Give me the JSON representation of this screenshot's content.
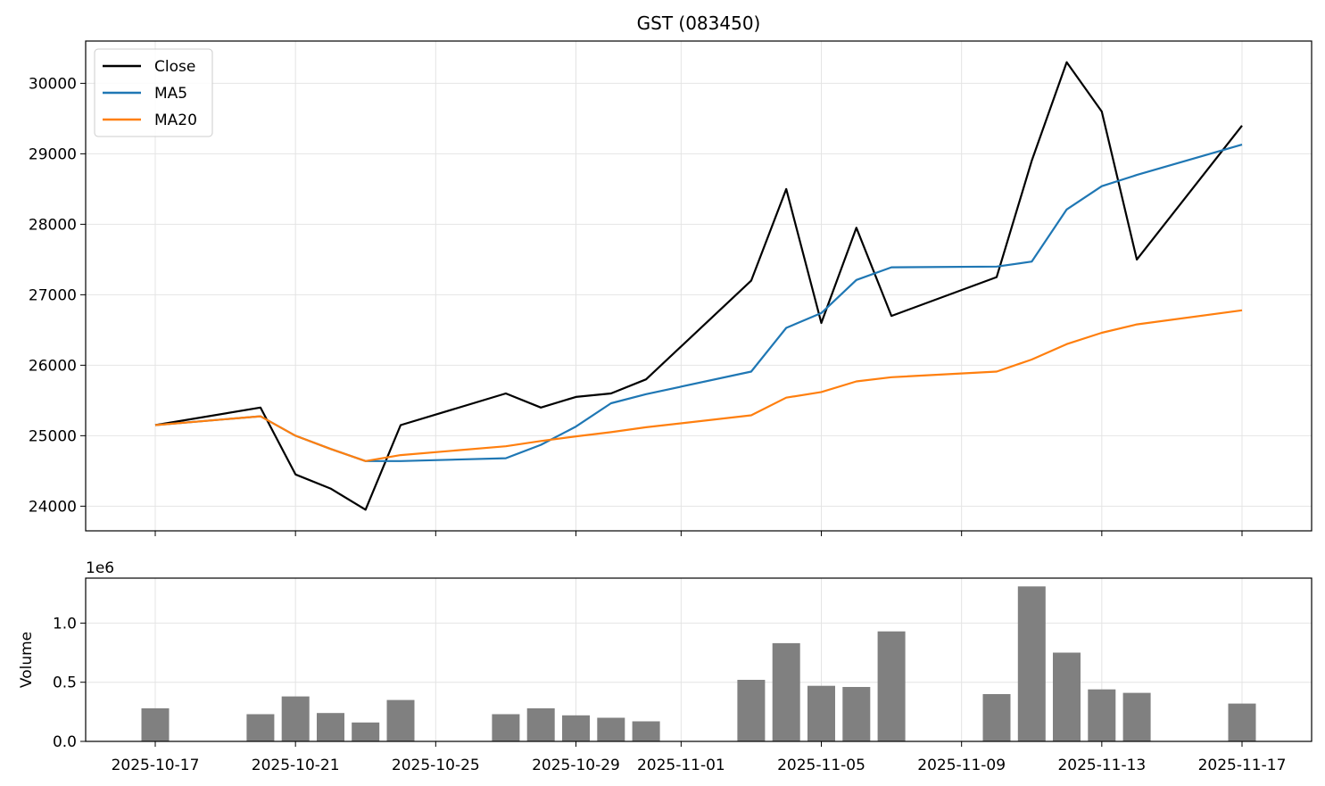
{
  "title": "GST (083450)",
  "chart_data": [
    {
      "type": "line",
      "title": "GST (083450)",
      "xlabel": "",
      "ylabel": "",
      "ylim": [
        23650,
        30600
      ],
      "yticks": [
        24000,
        25000,
        26000,
        27000,
        28000,
        29000,
        30000
      ],
      "grid": true,
      "legend_position": "top-left",
      "dates": [
        "2025-10-17",
        "2025-10-20",
        "2025-10-21",
        "2025-10-22",
        "2025-10-23",
        "2025-10-24",
        "2025-10-27",
        "2025-10-28",
        "2025-10-29",
        "2025-10-30",
        "2025-10-31",
        "2025-11-03",
        "2025-11-04",
        "2025-11-05",
        "2025-11-06",
        "2025-11-07",
        "2025-11-10",
        "2025-11-11",
        "2025-11-12",
        "2025-11-13",
        "2025-11-14",
        "2025-11-17"
      ],
      "series": [
        {
          "name": "Close",
          "color": "#000000",
          "values": [
            25150,
            25400,
            24450,
            24250,
            23950,
            25150,
            25600,
            25400,
            25550,
            25600,
            25800,
            27200,
            28500,
            26600,
            27950,
            26700,
            27250,
            28900,
            30300,
            29600,
            27500,
            29400
          ]
        },
        {
          "name": "MA5",
          "color": "#1f77b4",
          "values": [
            25150,
            25275,
            25000,
            24812,
            24640,
            24640,
            24680,
            24870,
            25130,
            25460,
            25590,
            25910,
            26530,
            26740,
            27210,
            27390,
            27400,
            27470,
            28210,
            28540,
            28700,
            29130
          ]
        },
        {
          "name": "MA20",
          "color": "#ff7f0e",
          "values": [
            25150,
            25275,
            25000,
            24812,
            24640,
            24725,
            24850,
            24925,
            24990,
            25050,
            25120,
            25290,
            25540,
            25620,
            25770,
            25830,
            25910,
            26080,
            26300,
            26460,
            26580,
            26780
          ]
        }
      ]
    },
    {
      "type": "bar",
      "ylabel": "Volume",
      "offset_label": "1e6",
      "ylim": [
        0,
        1.38
      ],
      "yticks": [
        "0.0",
        "0.5",
        "1.0"
      ],
      "ytick_values": [
        0,
        0.5,
        1.0
      ],
      "grid": true,
      "color": "#808080",
      "dates": [
        "2025-10-17",
        "2025-10-20",
        "2025-10-21",
        "2025-10-22",
        "2025-10-23",
        "2025-10-24",
        "2025-10-27",
        "2025-10-28",
        "2025-10-29",
        "2025-10-30",
        "2025-10-31",
        "2025-11-03",
        "2025-11-04",
        "2025-11-05",
        "2025-11-06",
        "2025-11-07",
        "2025-11-10",
        "2025-11-11",
        "2025-11-12",
        "2025-11-13",
        "2025-11-14",
        "2025-11-17"
      ],
      "values": [
        0.28,
        0.23,
        0.38,
        0.24,
        0.16,
        0.35,
        0.23,
        0.28,
        0.22,
        0.2,
        0.17,
        0.52,
        0.83,
        0.47,
        0.46,
        0.93,
        0.4,
        1.31,
        0.75,
        0.44,
        0.41,
        0.32
      ]
    }
  ],
  "x_ticks": [
    "2025-10-17",
    "2025-10-21",
    "2025-10-25",
    "2025-10-29",
    "2025-11-01",
    "2025-11-05",
    "2025-11-09",
    "2025-11-13",
    "2025-11-17"
  ]
}
